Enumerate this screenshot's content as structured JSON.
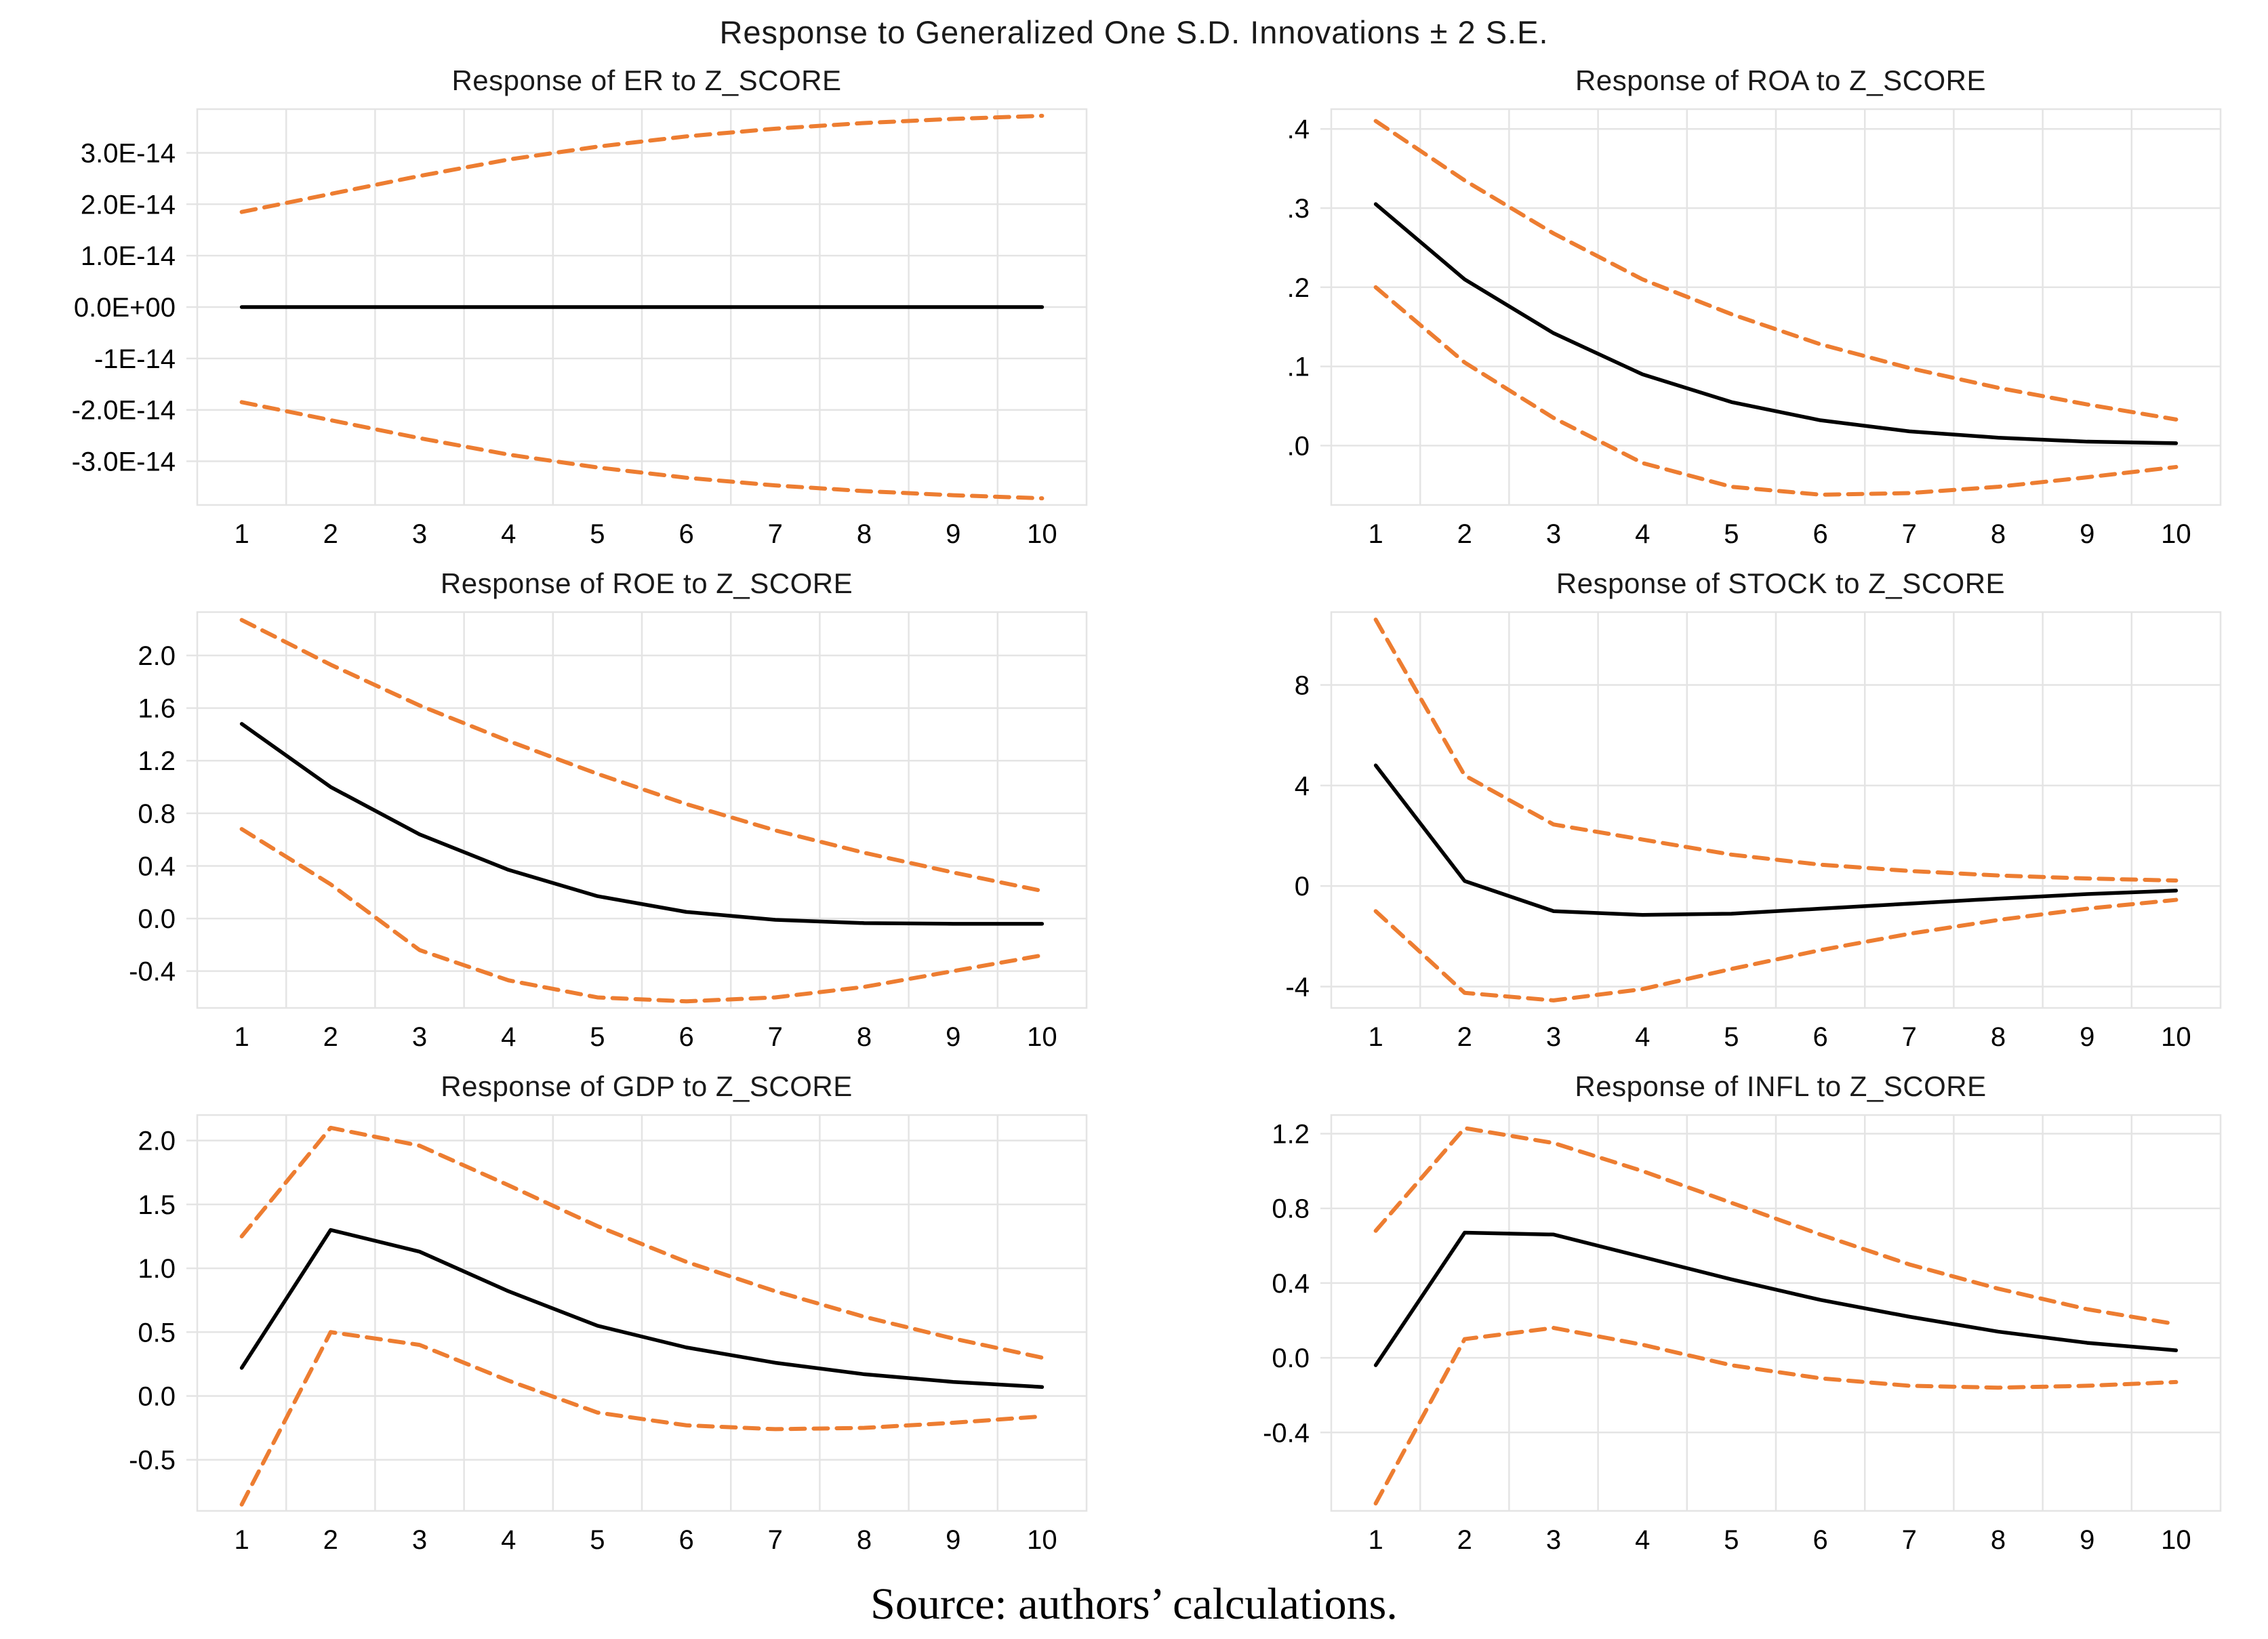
{
  "header": {
    "title": "Response to Generalized One S.D. Innovations ± 2 S.E."
  },
  "footer": {
    "source": "Source: authors’ calculations."
  },
  "colors": {
    "response_line": "#000000",
    "band_line": "#ED7D31",
    "gridline": "#E4E4E4",
    "background": "#FFFFFF"
  },
  "chart_data": [
    {
      "type": "line",
      "title": "Response of ER to Z_SCORE",
      "x": [
        1,
        2,
        3,
        4,
        5,
        6,
        7,
        8,
        9,
        10
      ],
      "xlabels": [
        "1",
        "2",
        "3",
        "4",
        "5",
        "6",
        "7",
        "8",
        "9",
        "10"
      ],
      "xlim": [
        0.5,
        10.5
      ],
      "unit": "1e-14",
      "ylim": [
        -3.85,
        3.85
      ],
      "yticks": [
        {
          "value": 3,
          "label": "3.0E-14"
        },
        {
          "value": 2,
          "label": "2.0E-14"
        },
        {
          "value": 1,
          "label": "1.0E-14"
        },
        {
          "value": 0,
          "label": "0.0E+00"
        },
        {
          "value": -1,
          "label": "-1E-14"
        },
        {
          "value": -2,
          "label": "-2.0E-14"
        },
        {
          "value": -3,
          "label": "-3.0E-14"
        }
      ],
      "series": [
        {
          "name": "upper_band",
          "style": "dashed",
          "values": [
            1.85,
            2.2,
            2.55,
            2.87,
            3.12,
            3.32,
            3.47,
            3.58,
            3.66,
            3.72
          ]
        },
        {
          "name": "response",
          "style": "solid",
          "values": [
            0,
            0,
            0,
            0,
            0,
            0,
            0,
            0,
            0,
            0
          ]
        },
        {
          "name": "lower_band",
          "style": "dashed",
          "values": [
            -1.85,
            -2.2,
            -2.55,
            -2.87,
            -3.12,
            -3.32,
            -3.47,
            -3.58,
            -3.66,
            -3.72
          ]
        }
      ]
    },
    {
      "type": "line",
      "title": "Response of ROA to Z_SCORE",
      "x": [
        1,
        2,
        3,
        4,
        5,
        6,
        7,
        8,
        9,
        10
      ],
      "xlabels": [
        "1",
        "2",
        "3",
        "4",
        "5",
        "6",
        "7",
        "8",
        "9",
        "10"
      ],
      "xlim": [
        0.5,
        10.5
      ],
      "ylim": [
        -0.075,
        0.425
      ],
      "yticks": [
        {
          "value": 0.4,
          "label": ".4"
        },
        {
          "value": 0.3,
          "label": ".3"
        },
        {
          "value": 0.2,
          "label": ".2"
        },
        {
          "value": 0.1,
          "label": ".1"
        },
        {
          "value": 0.0,
          "label": ".0"
        }
      ],
      "series": [
        {
          "name": "upper_band",
          "style": "dashed",
          "values": [
            0.41,
            0.335,
            0.268,
            0.21,
            0.166,
            0.128,
            0.098,
            0.073,
            0.052,
            0.033
          ]
        },
        {
          "name": "response",
          "style": "solid",
          "values": [
            0.305,
            0.21,
            0.142,
            0.09,
            0.055,
            0.032,
            0.018,
            0.01,
            0.005,
            0.003
          ]
        },
        {
          "name": "lower_band",
          "style": "dashed",
          "values": [
            0.2,
            0.105,
            0.035,
            -0.022,
            -0.052,
            -0.062,
            -0.06,
            -0.052,
            -0.04,
            -0.027
          ]
        }
      ]
    },
    {
      "type": "line",
      "title": "Response of ROE to Z_SCORE",
      "x": [
        1,
        2,
        3,
        4,
        5,
        6,
        7,
        8,
        9,
        10
      ],
      "xlabels": [
        "1",
        "2",
        "3",
        "4",
        "5",
        "6",
        "7",
        "8",
        "9",
        "10"
      ],
      "xlim": [
        0.5,
        10.5
      ],
      "ylim": [
        -0.68,
        2.33
      ],
      "yticks": [
        {
          "value": 2.0,
          "label": "2.0"
        },
        {
          "value": 1.6,
          "label": "1.6"
        },
        {
          "value": 1.2,
          "label": "1.2"
        },
        {
          "value": 0.8,
          "label": "0.8"
        },
        {
          "value": 0.4,
          "label": "0.4"
        },
        {
          "value": 0.0,
          "label": "0.0"
        },
        {
          "value": -0.4,
          "label": "-0.4"
        }
      ],
      "series": [
        {
          "name": "upper_band",
          "style": "dashed",
          "values": [
            2.27,
            1.93,
            1.62,
            1.35,
            1.1,
            0.87,
            0.67,
            0.5,
            0.35,
            0.21
          ]
        },
        {
          "name": "response",
          "style": "solid",
          "values": [
            1.48,
            1.0,
            0.64,
            0.37,
            0.17,
            0.05,
            -0.01,
            -0.035,
            -0.04,
            -0.04
          ]
        },
        {
          "name": "lower_band",
          "style": "dashed",
          "values": [
            0.68,
            0.26,
            -0.24,
            -0.47,
            -0.6,
            -0.63,
            -0.6,
            -0.52,
            -0.4,
            -0.28
          ]
        }
      ]
    },
    {
      "type": "line",
      "title": "Response of STOCK to Z_SCORE",
      "x": [
        1,
        2,
        3,
        4,
        5,
        6,
        7,
        8,
        9,
        10
      ],
      "xlabels": [
        "1",
        "2",
        "3",
        "4",
        "5",
        "6",
        "7",
        "8",
        "9",
        "10"
      ],
      "xlim": [
        0.5,
        10.5
      ],
      "ylim": [
        -4.85,
        10.9
      ],
      "yticks": [
        {
          "value": 8,
          "label": "8"
        },
        {
          "value": 4,
          "label": "4"
        },
        {
          "value": 0,
          "label": "0"
        },
        {
          "value": -4,
          "label": "-4"
        }
      ],
      "series": [
        {
          "name": "upper_band",
          "style": "dashed",
          "values": [
            10.6,
            4.4,
            2.45,
            1.85,
            1.25,
            0.85,
            0.6,
            0.42,
            0.3,
            0.22
          ]
        },
        {
          "name": "response",
          "style": "solid",
          "values": [
            4.8,
            0.2,
            -1.0,
            -1.15,
            -1.1,
            -0.9,
            -0.7,
            -0.5,
            -0.32,
            -0.18
          ]
        },
        {
          "name": "lower_band",
          "style": "dashed",
          "values": [
            -1.0,
            -4.25,
            -4.55,
            -4.1,
            -3.3,
            -2.55,
            -1.9,
            -1.35,
            -0.9,
            -0.55
          ]
        }
      ]
    },
    {
      "type": "line",
      "title": "Response of GDP to Z_SCORE",
      "x": [
        1,
        2,
        3,
        4,
        5,
        6,
        7,
        8,
        9,
        10
      ],
      "xlabels": [
        "1",
        "2",
        "3",
        "4",
        "5",
        "6",
        "7",
        "8",
        "9",
        "10"
      ],
      "xlim": [
        0.5,
        10.5
      ],
      "ylim": [
        -0.9,
        2.2
      ],
      "yticks": [
        {
          "value": 2.0,
          "label": "2.0"
        },
        {
          "value": 1.5,
          "label": "1.5"
        },
        {
          "value": 1.0,
          "label": "1.0"
        },
        {
          "value": 0.5,
          "label": "0.5"
        },
        {
          "value": 0.0,
          "label": "0.0"
        },
        {
          "value": -0.5,
          "label": "-0.5"
        }
      ],
      "series": [
        {
          "name": "upper_band",
          "style": "dashed",
          "values": [
            1.25,
            2.1,
            1.96,
            1.65,
            1.33,
            1.05,
            0.82,
            0.62,
            0.45,
            0.3
          ]
        },
        {
          "name": "response",
          "style": "solid",
          "values": [
            0.22,
            1.3,
            1.13,
            0.82,
            0.55,
            0.38,
            0.26,
            0.17,
            0.11,
            0.07
          ]
        },
        {
          "name": "lower_band",
          "style": "dashed",
          "values": [
            -0.85,
            0.5,
            0.4,
            0.12,
            -0.13,
            -0.23,
            -0.26,
            -0.25,
            -0.21,
            -0.16
          ]
        }
      ]
    },
    {
      "type": "line",
      "title": "Response of INFL to Z_SCORE",
      "x": [
        1,
        2,
        3,
        4,
        5,
        6,
        7,
        8,
        9,
        10
      ],
      "xlabels": [
        "1",
        "2",
        "3",
        "4",
        "5",
        "6",
        "7",
        "8",
        "9",
        "10"
      ],
      "xlim": [
        0.5,
        10.5
      ],
      "ylim": [
        -0.82,
        1.3
      ],
      "yticks": [
        {
          "value": 1.2,
          "label": "1.2"
        },
        {
          "value": 0.8,
          "label": "0.8"
        },
        {
          "value": 0.4,
          "label": "0.4"
        },
        {
          "value": 0.0,
          "label": "0.0"
        },
        {
          "value": -0.4,
          "label": "-0.4"
        }
      ],
      "series": [
        {
          "name": "upper_band",
          "style": "dashed",
          "values": [
            0.68,
            1.23,
            1.15,
            1.0,
            0.83,
            0.66,
            0.5,
            0.37,
            0.26,
            0.18
          ]
        },
        {
          "name": "response",
          "style": "solid",
          "values": [
            -0.04,
            0.67,
            0.66,
            0.54,
            0.42,
            0.31,
            0.22,
            0.14,
            0.08,
            0.04
          ]
        },
        {
          "name": "lower_band",
          "style": "dashed",
          "values": [
            -0.78,
            0.1,
            0.16,
            0.07,
            -0.04,
            -0.11,
            -0.15,
            -0.16,
            -0.15,
            -0.13
          ]
        }
      ]
    }
  ]
}
